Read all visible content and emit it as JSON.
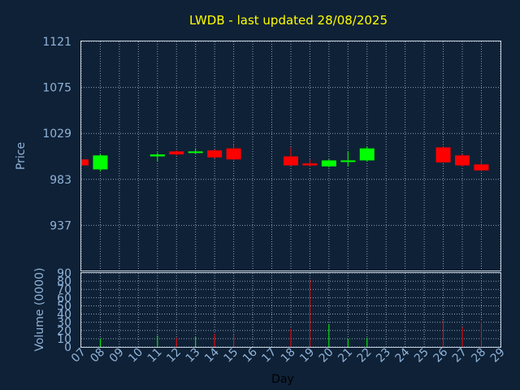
{
  "chart_data": {
    "type": "candlestick",
    "title": "LWDB - last updated 28/08/2025",
    "xlabel": "Day",
    "ylabel": "Price",
    "volume_label": "Volume (0000)",
    "price_ticks": [
      "1121",
      "1075",
      "1029",
      "983",
      "937"
    ],
    "price_range": [
      891,
      1121
    ],
    "volume_ticks": [
      "90",
      "80",
      "70",
      "60",
      "50",
      "40",
      "30",
      "20",
      "10",
      "0"
    ],
    "volume_range": [
      0,
      90
    ],
    "x_ticks": [
      "07",
      "08",
      "09",
      "10",
      "11",
      "12",
      "13",
      "14",
      "15",
      "16",
      "17",
      "18",
      "19",
      "20",
      "21",
      "22",
      "23",
      "24",
      "25",
      "26",
      "27",
      "28",
      "29"
    ],
    "up_color": "#00ff00",
    "down_color": "#ff0000",
    "grid": true,
    "candles": [
      {
        "day": "07",
        "open": 1003,
        "high": 1004,
        "low": 997,
        "close": 997,
        "volume": 0
      },
      {
        "day": "08",
        "open": 993,
        "high": 1008,
        "low": 991,
        "close": 1007,
        "volume": 10
      },
      {
        "day": "11",
        "open": 1006,
        "high": 1010,
        "low": 1001,
        "close": 1008,
        "volume": 14
      },
      {
        "day": "12",
        "open": 1011,
        "high": 1012,
        "low": 1007,
        "close": 1008,
        "volume": 11
      },
      {
        "day": "13",
        "open": 1010,
        "high": 1014,
        "low": 1009,
        "close": 1011,
        "volume": 12
      },
      {
        "day": "14",
        "open": 1012,
        "high": 1013,
        "low": 1004,
        "close": 1005,
        "volume": 16
      },
      {
        "day": "15",
        "open": 1014,
        "high": 1018,
        "low": 1002,
        "close": 1003,
        "volume": 15
      },
      {
        "day": "18",
        "open": 1006,
        "high": 1015,
        "low": 997,
        "close": 997,
        "volume": 22
      },
      {
        "day": "19",
        "open": 999,
        "high": 1003,
        "low": 996,
        "close": 997,
        "volume": 82
      },
      {
        "day": "20",
        "open": 996,
        "high": 1003,
        "low": 995,
        "close": 1002,
        "volume": 28
      },
      {
        "day": "21",
        "open": 1001,
        "high": 1011,
        "low": 996,
        "close": 1002,
        "volume": 10
      },
      {
        "day": "22",
        "open": 1002,
        "high": 1016,
        "low": 1001,
        "close": 1014,
        "volume": 11
      },
      {
        "day": "26",
        "open": 1015,
        "high": 1016,
        "low": 1000,
        "close": 1000,
        "volume": 32
      },
      {
        "day": "27",
        "open": 1007,
        "high": 1008,
        "low": 996,
        "close": 997,
        "volume": 24
      },
      {
        "day": "28",
        "open": 998,
        "high": 1004,
        "low": 991,
        "close": 992,
        "volume": 31
      }
    ]
  }
}
